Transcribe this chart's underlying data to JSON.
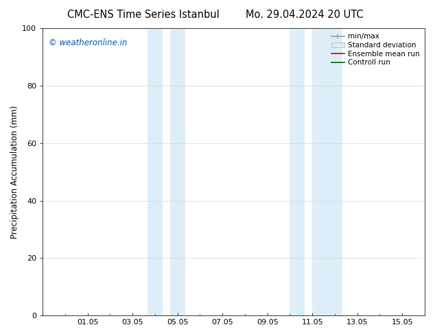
{
  "title_left": "CMC-ENS Time Series Istanbul",
  "title_right": "Mo. 29.04.2024 20 UTC",
  "ylabel": "Precipitation Accumulation (mm)",
  "ylim": [
    0,
    100
  ],
  "xtick_labels": [
    "01.05",
    "03.05",
    "05.05",
    "07.05",
    "09.05",
    "11.05",
    "13.05",
    "15.05"
  ],
  "xtick_positions": [
    2,
    4,
    6,
    8,
    10,
    12,
    14,
    16
  ],
  "xlim": [
    0,
    17
  ],
  "shaded_bands": [
    {
      "x_start": 4.67,
      "x_end": 5.33,
      "color": "#ddeef8"
    },
    {
      "x_start": 5.67,
      "x_end": 6.33,
      "color": "#ddeef8"
    },
    {
      "x_start": 11.0,
      "x_end": 11.67,
      "color": "#ddeef8"
    },
    {
      "x_start": 12.0,
      "x_end": 13.33,
      "color": "#ddeef8"
    }
  ],
  "watermark_text": "© weatheronline.in",
  "watermark_color": "#0055bb",
  "legend_items": [
    {
      "label": "min/max",
      "color": "#999999",
      "type": "line_with_caps"
    },
    {
      "label": "Standard deviation",
      "color": "#ddeef8",
      "type": "bar"
    },
    {
      "label": "Ensemble mean run",
      "color": "#cc0000",
      "type": "line"
    },
    {
      "label": "Controll run",
      "color": "#006600",
      "type": "line"
    }
  ],
  "background_color": "#ffffff",
  "spine_color": "#333333",
  "grid_color": "#dddddd",
  "title_fontsize": 10.5,
  "ylabel_fontsize": 8.5,
  "tick_fontsize": 8,
  "legend_fontsize": 7.5,
  "watermark_fontsize": 8.5
}
